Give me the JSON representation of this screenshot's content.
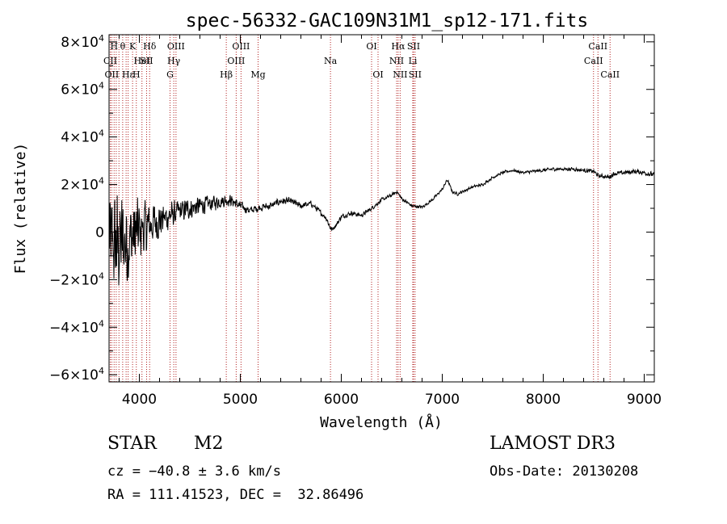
{
  "chart_data": {
    "type": "line",
    "title": "spec-56332-GAC109N31M1_sp12-171.fits",
    "xlabel": "Wavelength (Å)",
    "ylabel": "Flux (relative)",
    "xlim": [
      3700,
      9100
    ],
    "ylim": [
      -63000,
      83000
    ],
    "x_ticks": [
      {
        "value": 4000,
        "label": "4000"
      },
      {
        "value": 5000,
        "label": "5000"
      },
      {
        "value": 6000,
        "label": "6000"
      },
      {
        "value": 7000,
        "label": "7000"
      },
      {
        "value": 8000,
        "label": "8000"
      },
      {
        "value": 9000,
        "label": "9000"
      }
    ],
    "y_ticks": [
      {
        "value": 80000,
        "mant": "8×10",
        "exp": "4"
      },
      {
        "value": 60000,
        "mant": "6×10",
        "exp": "4"
      },
      {
        "value": 40000,
        "mant": "4×10",
        "exp": "4"
      },
      {
        "value": 20000,
        "mant": "2×10",
        "exp": "4"
      },
      {
        "value": 0,
        "mant": "0",
        "exp": ""
      },
      {
        "value": -20000,
        "mant": "−2×10",
        "exp": "4"
      },
      {
        "value": -40000,
        "mant": "−4×10",
        "exp": "4"
      },
      {
        "value": -60000,
        "mant": "−6×10",
        "exp": "4"
      }
    ],
    "line_color": "#000000",
    "marker_color": "#b22222",
    "series": [
      {
        "name": "flux",
        "noise": [
          [
            3700,
            26000
          ],
          [
            3850,
            26000
          ],
          [
            4000,
            17000
          ],
          [
            4100,
            12000
          ],
          [
            4300,
            6500
          ],
          [
            5000,
            2200
          ],
          [
            5500,
            1600
          ],
          [
            6000,
            1200
          ],
          [
            6800,
            800
          ],
          [
            7500,
            700
          ],
          [
            8500,
            1000
          ],
          [
            9100,
            1300
          ]
        ],
        "continuum": [
          [
            3700,
            -5000
          ],
          [
            3800,
            -5000
          ],
          [
            3900,
            -3000
          ],
          [
            4000,
            500
          ],
          [
            4100,
            3000
          ],
          [
            4200,
            5000
          ],
          [
            4300,
            7000
          ],
          [
            4400,
            8500
          ],
          [
            4500,
            10000
          ],
          [
            4600,
            11000
          ],
          [
            4700,
            12000
          ],
          [
            4800,
            13000
          ],
          [
            4900,
            13500
          ],
          [
            5000,
            11000
          ],
          [
            5100,
            9000
          ],
          [
            5200,
            10500
          ],
          [
            5300,
            11000
          ],
          [
            5400,
            13000
          ],
          [
            5500,
            13000
          ],
          [
            5600,
            11000
          ],
          [
            5700,
            12000
          ],
          [
            5800,
            8000
          ],
          [
            5850,
            6000
          ],
          [
            5900,
            1000
          ],
          [
            5950,
            3000
          ],
          [
            6000,
            6500
          ],
          [
            6100,
            8000
          ],
          [
            6200,
            7000
          ],
          [
            6300,
            10000
          ],
          [
            6400,
            13500
          ],
          [
            6500,
            15500
          ],
          [
            6550,
            17000
          ],
          [
            6600,
            14000
          ],
          [
            6700,
            11000
          ],
          [
            6800,
            10500
          ],
          [
            6900,
            13500
          ],
          [
            7000,
            18000
          ],
          [
            7050,
            22000
          ],
          [
            7100,
            17000
          ],
          [
            7150,
            16000
          ],
          [
            7200,
            17000
          ],
          [
            7300,
            19000
          ],
          [
            7400,
            20000
          ],
          [
            7500,
            23000
          ],
          [
            7600,
            25000
          ],
          [
            7700,
            26000
          ],
          [
            7800,
            25000
          ],
          [
            7900,
            25500
          ],
          [
            8000,
            26000
          ],
          [
            8100,
            26500
          ],
          [
            8200,
            26500
          ],
          [
            8300,
            26500
          ],
          [
            8400,
            26000
          ],
          [
            8500,
            25500
          ],
          [
            8550,
            23500
          ],
          [
            8600,
            23500
          ],
          [
            8650,
            23000
          ],
          [
            8700,
            24500
          ],
          [
            8800,
            25000
          ],
          [
            8900,
            25500
          ],
          [
            9000,
            25000
          ],
          [
            9100,
            24000
          ]
        ]
      }
    ],
    "lines": [
      {
        "x": 3712,
        "label": "CII",
        "row": 1
      },
      {
        "x": 3727,
        "label": "OII",
        "row": 2
      },
      {
        "x": 3750,
        "label": "H",
        "row": 0
      },
      {
        "x": 3771,
        "label": "",
        "row": 0
      },
      {
        "x": 3798,
        "label": "",
        "row": 0
      },
      {
        "x": 3835,
        "label": "θ",
        "row": 0
      },
      {
        "x": 3869,
        "label": "",
        "row": 1
      },
      {
        "x": 3889,
        "label": "Hε",
        "row": 2
      },
      {
        "x": 3933,
        "label": "K",
        "row": 0
      },
      {
        "x": 3970,
        "label": "H",
        "row": 2
      },
      {
        "x": 4026,
        "label": "HeI",
        "row": 1
      },
      {
        "x": 4072,
        "label": "SII",
        "row": 1
      },
      {
        "x": 4102,
        "label": "Hδ",
        "row": 0
      },
      {
        "x": 4304,
        "label": "G",
        "row": 2
      },
      {
        "x": 4341,
        "label": "Hγ",
        "row": 1
      },
      {
        "x": 4363,
        "label": "OIII",
        "row": 0
      },
      {
        "x": 4861,
        "label": "Hβ",
        "row": 2
      },
      {
        "x": 4959,
        "label": "OIII",
        "row": 1
      },
      {
        "x": 5007,
        "label": "OIII",
        "row": 0
      },
      {
        "x": 5176,
        "label": "Mg",
        "row": 2
      },
      {
        "x": 5893,
        "label": "Na",
        "row": 1
      },
      {
        "x": 6300,
        "label": "OI",
        "row": 0
      },
      {
        "x": 6364,
        "label": "OI",
        "row": 2
      },
      {
        "x": 6548,
        "label": "NII",
        "row": 1
      },
      {
        "x": 6563,
        "label": "Hα",
        "row": 0
      },
      {
        "x": 6583,
        "label": "NII",
        "row": 2
      },
      {
        "x": 6708,
        "label": "Li",
        "row": 1
      },
      {
        "x": 6716,
        "label": "SII",
        "row": 0
      },
      {
        "x": 6731,
        "label": "SII",
        "row": 2
      },
      {
        "x": 8498,
        "label": "CaII",
        "row": 1
      },
      {
        "x": 8542,
        "label": "CaII",
        "row": 0
      },
      {
        "x": 8662,
        "label": "CaII",
        "row": 2
      }
    ]
  },
  "info": {
    "class": "STAR",
    "subclass": "M2",
    "survey": "LAMOST DR3",
    "cz": "cz = −40.8 ± 3.6 km/s",
    "obs_date": "Obs-Date: 20130208",
    "coords": "RA = 111.41523, DEC =  32.86496"
  }
}
